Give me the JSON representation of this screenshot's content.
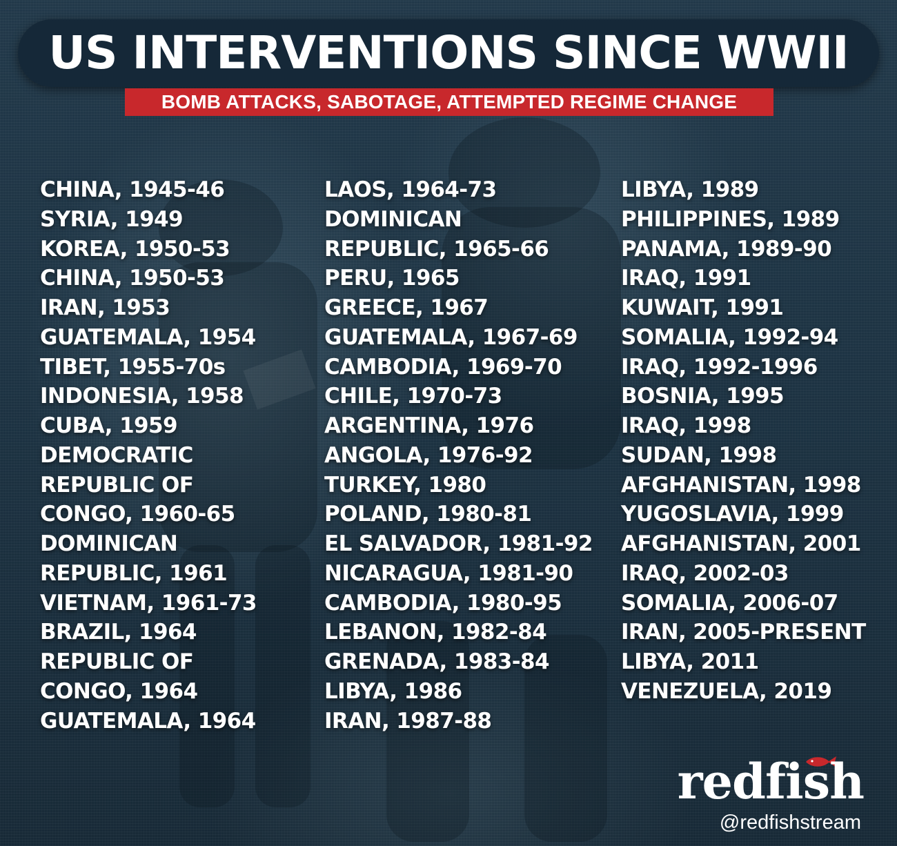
{
  "header": {
    "title": "US INTERVENTIONS SINCE WWII",
    "subtitle": "BOMB ATTACKS, SABOTAGE, ATTEMPTED REGIME CHANGE"
  },
  "columns": [
    [
      "CHINA, 1945-46",
      "SYRIA, 1949",
      "KOREA, 1950-53",
      "CHINA, 1950-53",
      "IRAN, 1953",
      "GUATEMALA, 1954",
      "TIBET, 1955-70s",
      "INDONESIA, 1958",
      "CUBA, 1959",
      "DEMOCRATIC",
      "REPUBLIC OF",
      "CONGO, 1960-65",
      "DOMINICAN",
      "REPUBLIC, 1961",
      "VIETNAM, 1961-73",
      "BRAZIL, 1964",
      "REPUBLIC OF",
      "CONGO, 1964",
      "GUATEMALA, 1964"
    ],
    [
      "LAOS, 1964-73",
      "DOMINICAN",
      "REPUBLIC, 1965-66",
      "PERU, 1965",
      "GREECE, 1967",
      "GUATEMALA, 1967-69",
      "CAMBODIA, 1969-70",
      "CHILE, 1970-73",
      "ARGENTINA, 1976",
      "ANGOLA, 1976-92",
      "TURKEY, 1980",
      "POLAND, 1980-81",
      "EL SALVADOR, 1981-92",
      "NICARAGUA, 1981-90",
      "CAMBODIA, 1980-95",
      "LEBANON, 1982-84",
      "GRENADA, 1983-84",
      "LIBYA, 1986",
      "IRAN, 1987-88"
    ],
    [
      "LIBYA, 1989",
      "PHILIPPINES, 1989",
      "PANAMA, 1989-90",
      "IRAQ, 1991",
      "KUWAIT, 1991",
      "SOMALIA, 1992-94",
      "IRAQ, 1992-1996",
      "BOSNIA, 1995",
      "IRAQ, 1998",
      "SUDAN, 1998",
      "AFGHANISTAN, 1998",
      "YUGOSLAVIA, 1999",
      "AFGHANISTAN, 2001",
      "IRAQ, 2002-03",
      "SOMALIA, 2006-07",
      "IRAN, 2005-PRESENT",
      "LIBYA, 2011",
      "VENEZUELA, 2019"
    ]
  ],
  "brand": {
    "logo": "redfish",
    "handle": "@redfishstream",
    "fish_icon": "fish-icon"
  },
  "colors": {
    "background": "#1d3343",
    "title_pill": "#152838",
    "accent_red": "#c8282c",
    "text": "#ffffff"
  }
}
